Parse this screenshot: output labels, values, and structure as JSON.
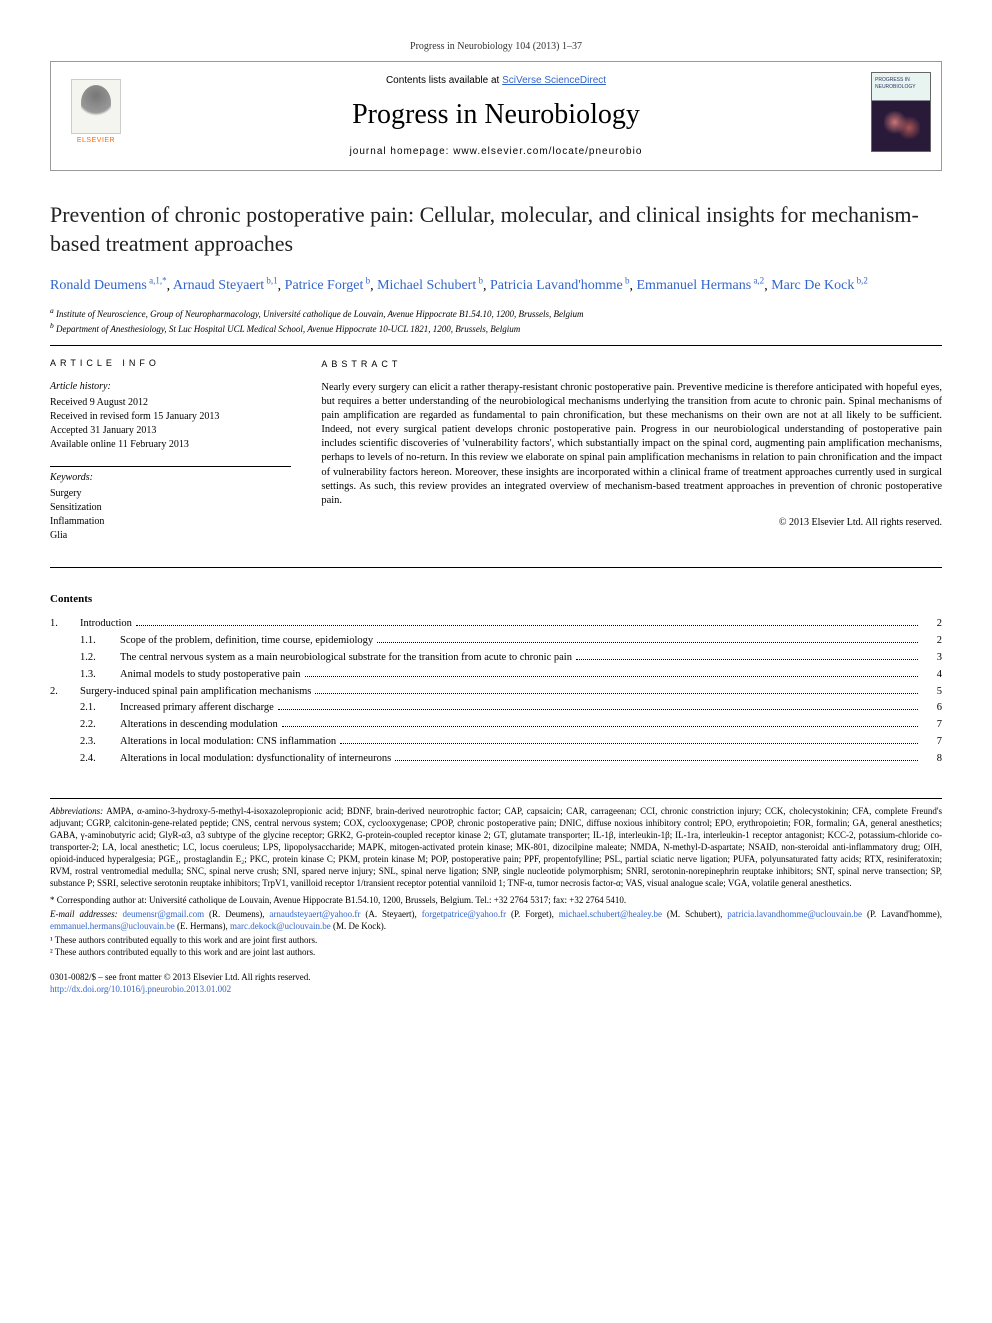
{
  "citation": "Progress in Neurobiology 104 (2013) 1–37",
  "header": {
    "contents_available": "Contents lists available at ",
    "scidirect": "SciVerse ScienceDirect",
    "journal_name": "Progress in Neurobiology",
    "homepage_label": "journal homepage: ",
    "homepage_url": "www.elsevier.com/locate/pneurobio",
    "elsevier_label": "ELSEVIER",
    "cover_label": "PROGRESS IN NEUROBIOLOGY"
  },
  "title": "Prevention of chronic postoperative pain: Cellular, molecular, and clinical insights for mechanism-based treatment approaches",
  "authors": [
    {
      "name": "Ronald Deumens",
      "aff": "a,1,*"
    },
    {
      "name": "Arnaud Steyaert",
      "aff": "b,1"
    },
    {
      "name": "Patrice Forget",
      "aff": "b"
    },
    {
      "name": "Michael Schubert",
      "aff": "b"
    },
    {
      "name": "Patricia Lavand'homme",
      "aff": "b"
    },
    {
      "name": "Emmanuel Hermans",
      "aff": "a,2"
    },
    {
      "name": "Marc De Kock",
      "aff": "b,2"
    }
  ],
  "affiliations": [
    {
      "key": "a",
      "text": "Institute of Neuroscience, Group of Neuropharmacology, Université catholique de Louvain, Avenue Hippocrate B1.54.10, 1200, Brussels, Belgium"
    },
    {
      "key": "b",
      "text": "Department of Anesthesiology, St Luc Hospital UCL Medical School, Avenue Hippocrate 10-UCL 1821, 1200, Brussels, Belgium"
    }
  ],
  "article_info": {
    "heading": "ARTICLE INFO",
    "history_label": "Article history:",
    "history": [
      "Received 9 August 2012",
      "Received in revised form 15 January 2013",
      "Accepted 31 January 2013",
      "Available online 11 February 2013"
    ],
    "keywords_label": "Keywords:",
    "keywords": [
      "Surgery",
      "Sensitization",
      "Inflammation",
      "Glia"
    ]
  },
  "abstract": {
    "heading": "ABSTRACT",
    "text": "Nearly every surgery can elicit a rather therapy-resistant chronic postoperative pain. Preventive medicine is therefore anticipated with hopeful eyes, but requires a better understanding of the neurobiological mechanisms underlying the transition from acute to chronic pain. Spinal mechanisms of pain amplification are regarded as fundamental to pain chronification, but these mechanisms on their own are not at all likely to be sufficient. Indeed, not every surgical patient develops chronic postoperative pain. Progress in our neurobiological understanding of postoperative pain includes scientific discoveries of 'vulnerability factors', which substantially impact on the spinal cord, augmenting pain amplification mechanisms, perhaps to levels of no-return. In this review we elaborate on spinal pain amplification mechanisms in relation to pain chronification and the impact of vulnerability factors hereon. Moreover, these insights are incorporated within a clinical frame of treatment approaches currently used in surgical settings. As such, this review provides an integrated overview of mechanism-based treatment approaches in prevention of chronic postoperative pain.",
    "copyright": "© 2013 Elsevier Ltd. All rights reserved."
  },
  "contents_heading": "Contents",
  "toc": [
    {
      "num": "1.",
      "title": "Introduction",
      "page": "2",
      "level": 1
    },
    {
      "num": "1.1.",
      "title": "Scope of the problem, definition, time course, epidemiology",
      "page": "2",
      "level": 2
    },
    {
      "num": "1.2.",
      "title": "The central nervous system as a main neurobiological substrate for the transition from acute to chronic pain",
      "page": "3",
      "level": 2
    },
    {
      "num": "1.3.",
      "title": "Animal models to study postoperative pain",
      "page": "4",
      "level": 2
    },
    {
      "num": "2.",
      "title": "Surgery-induced spinal pain amplification mechanisms",
      "page": "5",
      "level": 1
    },
    {
      "num": "2.1.",
      "title": "Increased primary afferent discharge",
      "page": "6",
      "level": 2
    },
    {
      "num": "2.2.",
      "title": "Alterations in descending modulation",
      "page": "7",
      "level": 2
    },
    {
      "num": "2.3.",
      "title": "Alterations in local modulation: CNS inflammation",
      "page": "7",
      "level": 2
    },
    {
      "num": "2.4.",
      "title": "Alterations in local modulation: dysfunctionality of interneurons",
      "page": "8",
      "level": 2
    }
  ],
  "footnotes": {
    "abbrev_label": "Abbreviations:",
    "abbrev_text": " AMPA, α-amino-3-hydroxy-5-methyl-4-isoxazolepropionic acid; BDNF, brain-derived neurotrophic factor; CAP, capsaicin; CAR, carrageenan; CCI, chronic constriction injury; CCK, cholecystokinin; CFA, complete Freund's adjuvant; CGRP, calcitonin-gene-related peptide; CNS, central nervous system; COX, cyclooxygenase; CPOP, chronic postoperative pain; DNIC, diffuse noxious inhibitory control; EPO, erythropoietin; FOR, formalin; GA, general anesthetics; GABA, γ-aminobutyric acid; GlyR-α3, α3 subtype of the glycine receptor; GRK2, G-protein-coupled receptor kinase 2; GT, glutamate transporter; IL-1β, interleukin-1β; IL-1ra, interleukin-1 receptor antagonist; KCC-2, potassium-chloride co-transporter-2; LA, local anesthetic; LC, locus coeruleus; LPS, lipopolysaccharide; MAPK, mitogen-activated protein kinase; MK-801, dizocilpine maleate; NMDA, N-methyl-D-aspartate; NSAID, non-steroidal anti-inflammatory drug; OIH, opioid-induced hyperalgesia; PGE₂, prostaglandin E₂; PKC, protein kinase C; PKM, protein kinase M; POP, postoperative pain; PPF, propentofylline; PSL, partial sciatic nerve ligation; PUFA, polyunsaturated fatty acids; RTX, resiniferatoxin; RVM, rostral ventromedial medulla; SNC, spinal nerve crush; SNI, spared nerve injury; SNL, spinal nerve ligation; SNP, single nucleotide polymorphism; SNRI, serotonin-norepinephrin reuptake inhibitors; SNT, spinal nerve transection; SP, substance P; SSRI, selective serotonin reuptake inhibitors; TrpV1, vanilloid receptor 1/transient receptor potential vanniloid 1; TNF-α, tumor necrosis factor-α; VAS, visual analogue scale; VGA, volatile general anesthetics.",
    "corresponding": "* Corresponding author at: Université catholique de Louvain, Avenue Hippocrate B1.54.10, 1200, Brussels, Belgium. Tel.: +32 2764 5317; fax: +32 2764 5410.",
    "emails_label": "E-mail addresses: ",
    "emails": [
      {
        "addr": "deumensr@gmail.com",
        "who": "(R. Deumens)"
      },
      {
        "addr": "arnaudsteyaert@yahoo.fr",
        "who": "(A. Steyaert)"
      },
      {
        "addr": "forgetpatrice@yahoo.fr",
        "who": "(P. Forget)"
      },
      {
        "addr": "michael.schubert@healey.be",
        "who": "(M. Schubert)"
      },
      {
        "addr": "patricia.lavandhomme@uclouvain.be",
        "who": "(P. Lavand'homme)"
      },
      {
        "addr": "emmanuel.hermans@uclouvain.be",
        "who": "(E. Hermans)"
      },
      {
        "addr": "marc.dekock@uclouvain.be",
        "who": "(M. De Kock)"
      }
    ],
    "note1": "¹ These authors contributed equally to this work and are joint first authors.",
    "note2": "² These authors contributed equally to this work and are joint last authors."
  },
  "footer": {
    "issn": "0301-0082/$ – see front matter © 2013 Elsevier Ltd. All rights reserved.",
    "doi": "http://dx.doi.org/10.1016/j.pneurobio.2013.01.002"
  }
}
